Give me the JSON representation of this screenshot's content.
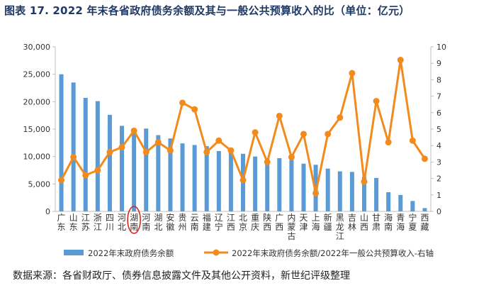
{
  "title": "图表 17. 2022 年末各省政府债务余额及其与一般公共预算收入的比（单位：亿元）",
  "source": "数据来源：各省财政厅、债券信息披露文件及其他公开资料，新世纪评级整理",
  "colors": {
    "bar": "#5b9bd5",
    "line": "#f28a1c",
    "title": "#1f3864",
    "highlight": "#d9241d",
    "axis": "#bfbfbf",
    "text": "#333333"
  },
  "chart_data": {
    "type": "bar+line",
    "categories": [
      "广东",
      "山东",
      "江苏",
      "浙江",
      "四川",
      "河北",
      "湖南",
      "河南",
      "湖北",
      "安徽",
      "贵州",
      "云南",
      "福建",
      "辽宁",
      "江西",
      "北京",
      "重庆",
      "陕西",
      "广西",
      "内蒙古",
      "天津",
      "上海",
      "新疆",
      "黑龙江",
      "吉林",
      "山西",
      "甘肃",
      "海南",
      "青海",
      "宁夏",
      "西藏"
    ],
    "category_labels": [
      "广\n东",
      "山\n东",
      "江\n苏",
      "浙\n江",
      "四\n川",
      "河\n北",
      "湖\n南",
      "河\n南",
      "湖\n北",
      "安\n徽",
      "贵\n州",
      "云\n南",
      "福\n建",
      "辽\n宁",
      "江\n西",
      "北\n京",
      "重\n庆",
      "陕\n西",
      "广\n西",
      "内\n蒙\n古",
      "天\n津",
      "上\n海",
      "新\n疆",
      "黑\n龙\n江",
      "吉\n林",
      "山\n西",
      "甘\n肃",
      "海\n南",
      "青\n海",
      "宁\n夏",
      "西\n藏"
    ],
    "highlighted_category": "湖南",
    "series": [
      {
        "name": "2022年末政府债务余额",
        "type": "bar",
        "axis": "left",
        "values": [
          25000,
          23500,
          20700,
          20100,
          17600,
          15600,
          15100,
          15100,
          13900,
          13300,
          12400,
          12100,
          11900,
          11000,
          10900,
          10500,
          10000,
          9700,
          9700,
          9400,
          8700,
          8500,
          7800,
          7300,
          7200,
          6300,
          6100,
          3500,
          3000,
          1900,
          600
        ]
      },
      {
        "name": "2022年末政府债务余额/2022年一般公共预算收入-右轴",
        "type": "line",
        "axis": "right",
        "values": [
          1.9,
          3.3,
          2.2,
          2.5,
          3.6,
          3.9,
          4.9,
          3.6,
          4.2,
          3.7,
          6.6,
          6.2,
          3.6,
          4.3,
          3.7,
          1.9,
          4.8,
          3.0,
          5.8,
          3.3,
          4.7,
          1.1,
          4.7,
          5.7,
          8.4,
          1.8,
          6.7,
          4.2,
          9.2,
          4.3,
          3.2
        ]
      }
    ],
    "left_axis": {
      "ylim": [
        0,
        30000
      ],
      "ticks": [
        "0",
        "5,000",
        "10,000",
        "15,000",
        "20,000",
        "25,000",
        "30,000"
      ]
    },
    "right_axis": {
      "ylim": [
        0,
        10
      ],
      "ticks": [
        "0",
        "1",
        "2",
        "3",
        "4",
        "5",
        "6",
        "7",
        "8",
        "9",
        "10"
      ]
    },
    "legend_position": "bottom",
    "grid": false
  }
}
